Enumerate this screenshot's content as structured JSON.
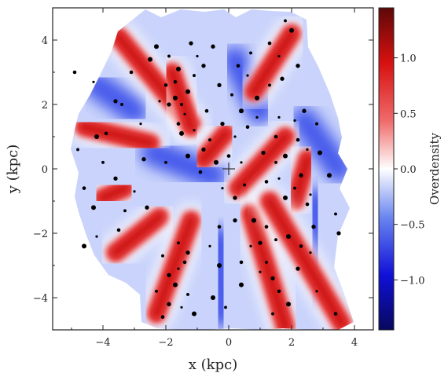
{
  "chart_data": {
    "type": "heatmap",
    "title": "",
    "xlabel": "x (kpc)",
    "ylabel": "y (kpc)",
    "xlim": [
      -5.6,
      4.6
    ],
    "ylim": [
      -5.0,
      5.0
    ],
    "x_ticks": [
      -4,
      -2,
      0,
      2,
      4
    ],
    "y_ticks": [
      -4,
      -2,
      0,
      2,
      4
    ],
    "x_tick_labels": [
      "−4",
      "−2",
      "0",
      "2",
      "4"
    ],
    "y_tick_labels": [
      "−4",
      "−2",
      "0",
      "2",
      "4"
    ],
    "grid": false,
    "colorbar": {
      "label": "Overdensity",
      "range": [
        -1.45,
        1.45
      ],
      "ticks": [
        -1.0,
        -0.5,
        0.0,
        0.5,
        1.0
      ],
      "tick_labels": [
        "−1.0",
        "−0.5",
        "0.0",
        "0.5",
        "1.0"
      ],
      "colormap": [
        "#08085e",
        "#1010d8",
        "#6a86f0",
        "#ffffff",
        "#f06a6a",
        "#d81010",
        "#5e0808"
      ]
    },
    "sun_marker": {
      "x": 0.0,
      "y": 0.0,
      "symbol": "+"
    },
    "red_arms": [
      {
        "from": [
          -3.5,
          4.1
        ],
        "to": [
          -1.2,
          1.4
        ]
      },
      {
        "from": [
          -1.8,
          3.0
        ],
        "to": [
          -1.2,
          1.3
        ]
      },
      {
        "from": [
          -4.6,
          1.3
        ],
        "to": [
          -2.5,
          0.8
        ]
      },
      {
        "from": [
          -0.1,
          1.1
        ],
        "to": [
          -0.8,
          0.3
        ]
      },
      {
        "from": [
          2.0,
          4.2
        ],
        "to": [
          0.8,
          2.4
        ]
      },
      {
        "from": [
          1.8,
          1.0
        ],
        "to": [
          0.3,
          -0.6
        ]
      },
      {
        "from": [
          2.5,
          0.3
        ],
        "to": [
          2.1,
          -1.0
        ]
      },
      {
        "from": [
          -3.6,
          -2.6
        ],
        "to": [
          -2.2,
          -1.5
        ]
      },
      {
        "from": [
          -1.2,
          -1.6
        ],
        "to": [
          -2.3,
          -4.5
        ]
      },
      {
        "from": [
          0.7,
          -1.4
        ],
        "to": [
          1.8,
          -4.9
        ]
      },
      {
        "from": [
          1.3,
          -1.0
        ],
        "to": [
          3.6,
          -4.8
        ]
      },
      {
        "from": [
          -4.0,
          -0.9
        ],
        "to": [
          -3.3,
          -0.6
        ]
      }
    ],
    "blue_regions": [
      {
        "from": [
          -0.3,
          -2.2
        ],
        "to": [
          -0.2,
          -4.5
        ]
      },
      {
        "from": [
          2.4,
          1.5
        ],
        "to": [
          3.5,
          0.0
        ]
      },
      {
        "from": [
          2.8,
          -1.0
        ],
        "to": [
          2.7,
          -3.6
        ]
      },
      {
        "from": [
          -2.4,
          0.5
        ],
        "to": [
          -0.5,
          -0.2
        ]
      },
      {
        "from": [
          -4.2,
          2.6
        ],
        "to": [
          -3.0,
          1.8
        ]
      },
      {
        "from": [
          0.2,
          3.4
        ],
        "to": [
          1.0,
          1.8
        ]
      }
    ],
    "star_clusters": [
      [
        -4.3,
        2.7
      ],
      [
        -4.9,
        3.0
      ],
      [
        -2.3,
        3.8
      ],
      [
        -1.9,
        3.5
      ],
      [
        -1.2,
        3.9
      ],
      [
        -1.0,
        3.5
      ],
      [
        -2.0,
        2.6
      ],
      [
        -1.7,
        2.2
      ],
      [
        -1.5,
        2.0
      ],
      [
        -1.9,
        2.0
      ],
      [
        -1.4,
        1.7
      ],
      [
        -1.6,
        1.4
      ],
      [
        -1.3,
        2.4
      ],
      [
        -1.1,
        2.9
      ],
      [
        -0.8,
        3.2
      ],
      [
        -2.2,
        2.1
      ],
      [
        -1.7,
        2.7
      ],
      [
        -1.5,
        1.1
      ],
      [
        -3.4,
        2.0
      ],
      [
        -3.6,
        2.1
      ],
      [
        -2.8,
        1.4
      ],
      [
        -3.9,
        1.1
      ],
      [
        -4.2,
        1.0
      ],
      [
        -4.8,
        0.6
      ],
      [
        -3.6,
        -0.3
      ],
      [
        -3.0,
        -0.7
      ],
      [
        -4.6,
        -0.6
      ],
      [
        -4.3,
        -1.2
      ],
      [
        -3.3,
        -1.3
      ],
      [
        -2.6,
        -1.2
      ],
      [
        -4.2,
        -2.1
      ],
      [
        -3.5,
        -1.9
      ],
      [
        -4.6,
        -2.4
      ],
      [
        -2.1,
        -2.7
      ],
      [
        -1.9,
        -3.3
      ],
      [
        -1.6,
        -3.1
      ],
      [
        -1.4,
        -2.9
      ],
      [
        -1.7,
        -3.6
      ],
      [
        -1.3,
        -3.9
      ],
      [
        -1.9,
        -4.2
      ],
      [
        -1.5,
        -4.3
      ],
      [
        -2.1,
        -4.6
      ],
      [
        -1.1,
        -4.5
      ],
      [
        -1.6,
        -2.3
      ],
      [
        -1.3,
        -2.6
      ],
      [
        -0.6,
        -2.4
      ],
      [
        -0.3,
        -1.8
      ],
      [
        -0.3,
        -3.0
      ],
      [
        -0.1,
        -4.3
      ],
      [
        0.2,
        -1.6
      ],
      [
        0.4,
        0.2
      ],
      [
        0.0,
        0.4
      ],
      [
        -0.4,
        0.2
      ],
      [
        -0.6,
        0.9
      ],
      [
        -0.2,
        1.4
      ],
      [
        0.2,
        1.0
      ],
      [
        0.6,
        1.3
      ],
      [
        0.4,
        1.8
      ],
      [
        0.1,
        2.3
      ],
      [
        -0.3,
        2.6
      ],
      [
        0.6,
        2.9
      ],
      [
        0.3,
        3.2
      ],
      [
        0.9,
        2.2
      ],
      [
        1.3,
        2.6
      ],
      [
        1.7,
        2.8
      ],
      [
        1.6,
        3.5
      ],
      [
        1.3,
        3.9
      ],
      [
        2.0,
        4.3
      ],
      [
        1.8,
        4.6
      ],
      [
        2.2,
        3.2
      ],
      [
        0.9,
        1.6
      ],
      [
        1.5,
        1.0
      ],
      [
        1.8,
        0.4
      ],
      [
        1.5,
        0.2
      ],
      [
        1.1,
        0.5
      ],
      [
        1.6,
        -0.3
      ],
      [
        1.2,
        -0.4
      ],
      [
        1.8,
        -0.9
      ],
      [
        2.1,
        -0.6
      ],
      [
        2.3,
        -0.2
      ],
      [
        2.6,
        -0.8
      ],
      [
        2.5,
        -1.1
      ],
      [
        2.9,
        0.5
      ],
      [
        2.8,
        1.4
      ],
      [
        2.4,
        1.8
      ],
      [
        2.1,
        1.5
      ],
      [
        2.2,
        0.9
      ],
      [
        3.2,
        -0.2
      ],
      [
        3.4,
        -1.4
      ],
      [
        2.7,
        -1.8
      ],
      [
        2.6,
        -2.6
      ],
      [
        2.3,
        -2.4
      ],
      [
        1.9,
        -2.1
      ],
      [
        1.5,
        -2.2
      ],
      [
        1.0,
        -2.3
      ],
      [
        0.7,
        -2.4
      ],
      [
        1.2,
        -1.8
      ],
      [
        0.8,
        -1.6
      ],
      [
        1.2,
        -2.9
      ],
      [
        1.4,
        -3.4
      ],
      [
        1.0,
        -3.2
      ],
      [
        1.6,
        -3.8
      ],
      [
        1.9,
        -4.2
      ],
      [
        1.4,
        -4.5
      ],
      [
        2.2,
        -3.1
      ],
      [
        2.8,
        -3.8
      ],
      [
        3.4,
        -4.5
      ],
      [
        0.4,
        -3.6
      ],
      [
        0.5,
        -0.5
      ],
      [
        0.2,
        -0.9
      ],
      [
        -0.2,
        -0.6
      ],
      [
        -0.9,
        -0.1
      ],
      [
        -1.3,
        0.4
      ],
      [
        -2.0,
        0.2
      ],
      [
        -2.7,
        0.3
      ],
      [
        -1.1,
        1.2
      ],
      [
        -0.7,
        1.8
      ],
      [
        -2.5,
        3.4
      ],
      [
        -4.0,
        0.2
      ],
      [
        3.5,
        -2.0
      ],
      [
        1.6,
        1.6
      ],
      [
        0.4,
        -2.9
      ],
      [
        -0.5,
        -4.0
      ],
      [
        -2.3,
        -3.8
      ],
      [
        -0.8,
        0.6
      ],
      [
        2.5,
        0.6
      ],
      [
        -3.1,
        3.0
      ],
      [
        -1.6,
        3.1
      ],
      [
        0.7,
        3.6
      ],
      [
        -0.5,
        3.8
      ]
    ]
  }
}
